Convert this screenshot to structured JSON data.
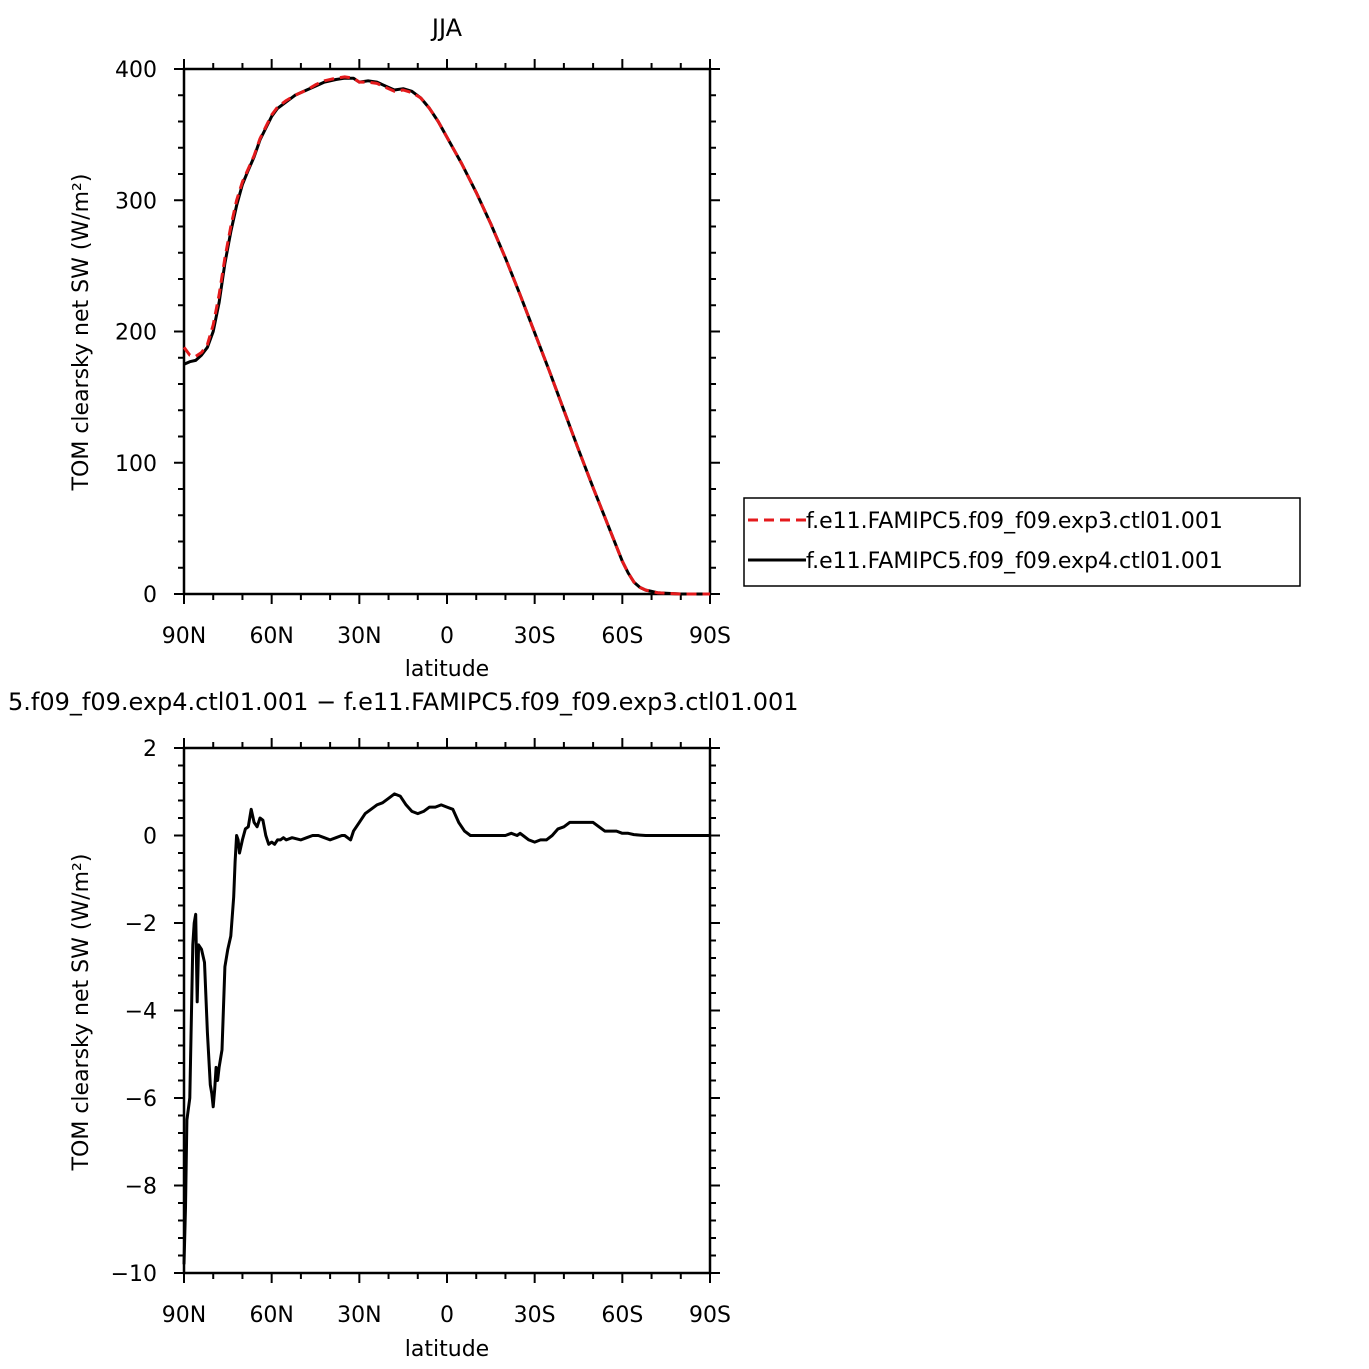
{
  "chart_data": [
    {
      "type": "line",
      "title": "JJA",
      "xlabel": "latitude",
      "ylabel": "TOM clearsky net SW (W/m²)",
      "xlim": [
        90,
        -90
      ],
      "ylim": [
        0,
        400
      ],
      "x_ticks": [
        90,
        60,
        30,
        0,
        -30,
        -60,
        -90
      ],
      "x_tick_labels": [
        "90N",
        "60N",
        "30N",
        "0",
        "30S",
        "60S",
        "90S"
      ],
      "y_ticks": [
        0,
        100,
        200,
        300,
        400
      ],
      "y_tick_labels": [
        "0",
        "100",
        "200",
        "300",
        "400"
      ],
      "legend_position": "right",
      "series": [
        {
          "name": "f.e11.FAMIPC5.f09_f09.exp3.ctl01.001",
          "color": "#e41a1c",
          "dash": "dashed",
          "x": [
            90,
            88,
            86,
            84,
            82,
            80,
            78,
            76,
            74,
            72,
            70,
            68,
            66,
            64,
            62,
            60,
            58,
            55,
            52,
            48,
            45,
            42,
            38,
            35,
            32,
            30,
            27,
            24,
            21,
            18,
            15,
            12,
            9,
            6,
            3,
            0,
            -5,
            -10,
            -15,
            -20,
            -25,
            -30,
            -35,
            -40,
            -45,
            -50,
            -55,
            -60,
            -62,
            -64,
            -66,
            -68,
            -70,
            -72,
            -75,
            -80,
            -85,
            -90
          ],
          "y": [
            188,
            182,
            181,
            184,
            190,
            205,
            228,
            256,
            280,
            300,
            314,
            324,
            334,
            347,
            356,
            365,
            371,
            376,
            380,
            384,
            388,
            391,
            393,
            394,
            393,
            390,
            390,
            389,
            386,
            383,
            384,
            382,
            378,
            370,
            360,
            348,
            328,
            306,
            282,
            256,
            228,
            199,
            170,
            140,
            110,
            81,
            53,
            25,
            16,
            9,
            5,
            3,
            2,
            1,
            0.5,
            0,
            0,
            0
          ]
        },
        {
          "name": "f.e11.FAMIPC5.f09_f09.exp4.ctl01.001",
          "color": "#000000",
          "dash": "solid",
          "x": [
            90,
            88,
            86,
            84,
            82,
            80,
            78,
            76,
            74,
            72,
            70,
            68,
            66,
            64,
            62,
            60,
            58,
            55,
            52,
            48,
            45,
            42,
            38,
            35,
            32,
            30,
            27,
            24,
            21,
            18,
            15,
            12,
            9,
            6,
            3,
            0,
            -5,
            -10,
            -15,
            -20,
            -25,
            -30,
            -35,
            -40,
            -45,
            -50,
            -55,
            -60,
            -62,
            -64,
            -66,
            -68,
            -70,
            -72,
            -75,
            -80,
            -85,
            -90
          ],
          "y": [
            175,
            177,
            178,
            182,
            188,
            200,
            222,
            252,
            276,
            296,
            312,
            323,
            333,
            346,
            355,
            364,
            370,
            375,
            380,
            384,
            387,
            390,
            392,
            393,
            393,
            390,
            391,
            390,
            387,
            384,
            385,
            383,
            378,
            370,
            360,
            348,
            328,
            306,
            282,
            256,
            228,
            199,
            170,
            140,
            110,
            81,
            53,
            25,
            16,
            9,
            5,
            3,
            2,
            1,
            0.5,
            0,
            0,
            0
          ]
        }
      ]
    },
    {
      "type": "line",
      "title": "5.f09_f09.exp4.ctl01.001 − f.e11.FAMIPC5.f09_f09.exp3.ctl01.001",
      "xlabel": "latitude",
      "ylabel": "TOM clearsky net SW (W/m²)",
      "xlim": [
        90,
        -90
      ],
      "ylim": [
        -10,
        2
      ],
      "x_ticks": [
        90,
        60,
        30,
        0,
        -30,
        -60,
        -90
      ],
      "x_tick_labels": [
        "90N",
        "60N",
        "30N",
        "0",
        "30S",
        "60S",
        "90S"
      ],
      "y_ticks": [
        -10,
        -8,
        -6,
        -4,
        -2,
        0,
        2
      ],
      "y_tick_labels": [
        "−10",
        "−8",
        "−6",
        "−4",
        "−2",
        "0",
        "2"
      ],
      "series": [
        {
          "color": "#000000",
          "dash": "solid",
          "x": [
            90,
            89.5,
            89,
            88,
            87,
            86.5,
            86,
            85.5,
            85,
            84,
            83,
            82,
            81,
            80.5,
            80,
            79.5,
            79,
            78.5,
            78,
            77,
            76,
            75,
            74,
            73,
            72.5,
            72,
            71.5,
            71,
            70,
            69,
            68,
            67,
            66,
            65,
            64,
            63,
            62,
            61,
            60,
            59,
            58,
            57,
            56,
            55,
            53,
            50,
            48,
            46,
            44,
            42,
            40,
            38,
            36,
            35,
            34,
            33,
            32,
            30,
            28,
            26,
            24,
            22,
            20,
            18,
            16,
            14,
            12,
            10,
            8,
            6,
            4,
            2,
            0,
            -2,
            -4,
            -6,
            -8,
            -10,
            -12,
            -14,
            -16,
            -18,
            -20,
            -22,
            -24,
            -25,
            -26,
            -28,
            -30,
            -32,
            -34,
            -36,
            -38,
            -40,
            -42,
            -44,
            -46,
            -48,
            -50,
            -52,
            -54,
            -56,
            -58,
            -60,
            -62,
            -64,
            -66,
            -68,
            -70,
            -75,
            -80,
            -90
          ],
          "y": [
            -9.8,
            -8.5,
            -6.5,
            -6.0,
            -2.5,
            -2.0,
            -1.8,
            -3.8,
            -2.5,
            -2.6,
            -2.9,
            -4.5,
            -5.7,
            -5.9,
            -6.2,
            -5.8,
            -5.3,
            -5.6,
            -5.3,
            -4.9,
            -3.0,
            -2.6,
            -2.3,
            -1.4,
            -0.6,
            0.0,
            -0.1,
            -0.4,
            -0.1,
            0.15,
            0.2,
            0.6,
            0.3,
            0.2,
            0.4,
            0.35,
            0.0,
            -0.2,
            -0.15,
            -0.2,
            -0.1,
            -0.1,
            -0.05,
            -0.1,
            -0.05,
            -0.1,
            -0.05,
            0.0,
            0.0,
            -0.05,
            -0.1,
            -0.05,
            0.0,
            0.0,
            -0.05,
            -0.1,
            0.1,
            0.3,
            0.5,
            0.6,
            0.7,
            0.75,
            0.85,
            0.95,
            0.9,
            0.7,
            0.55,
            0.5,
            0.55,
            0.65,
            0.65,
            0.7,
            0.65,
            0.6,
            0.3,
            0.1,
            0.0,
            0.0,
            0.0,
            0.0,
            0.0,
            0.0,
            0.0,
            0.05,
            0.0,
            0.05,
            0.0,
            -0.1,
            -0.15,
            -0.1,
            -0.1,
            0.0,
            0.15,
            0.2,
            0.3,
            0.3,
            0.3,
            0.3,
            0.3,
            0.2,
            0.1,
            0.1,
            0.1,
            0.05,
            0.05,
            0.02,
            0.01,
            0.0,
            0.0,
            0.0,
            0.0,
            0.0
          ]
        }
      ]
    }
  ]
}
